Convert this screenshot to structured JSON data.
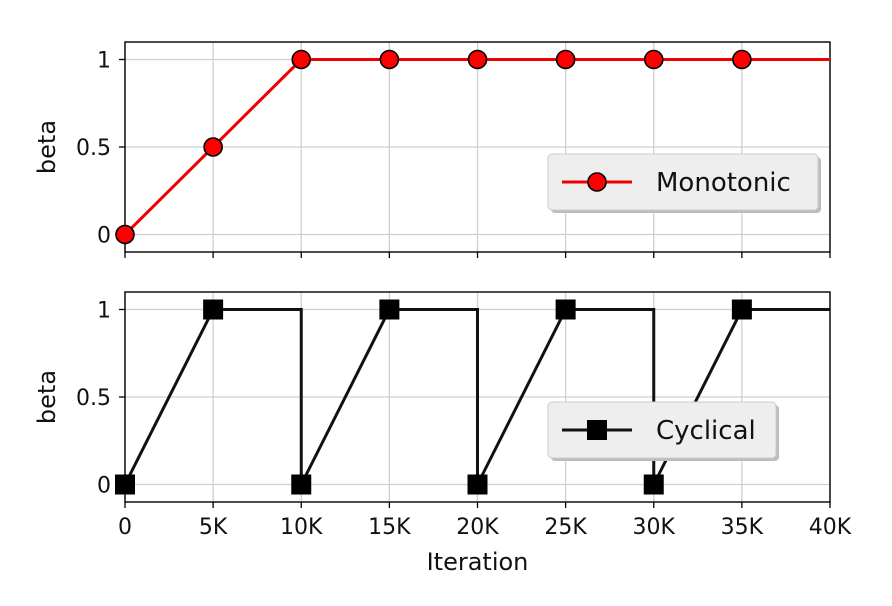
{
  "chart_data": [
    {
      "type": "line",
      "ylabel": "beta",
      "xlabel": "",
      "xlim": [
        0,
        40000
      ],
      "ylim": [
        -0.1,
        1.1
      ],
      "xticks": [
        0,
        5000,
        10000,
        15000,
        20000,
        25000,
        30000,
        35000,
        40000
      ],
      "xtick_labels": [],
      "yticks": [
        0,
        0.5,
        1
      ],
      "ytick_labels": [
        "0",
        "0.5",
        "1"
      ],
      "grid": true,
      "legend_position": "center-right",
      "series": [
        {
          "name": "Monotonic",
          "color": "#ee0000",
          "marker_color": "#ff0000",
          "marker": "circle",
          "line": [
            [
              0,
              0
            ],
            [
              10000,
              1
            ],
            [
              40000,
              1
            ]
          ],
          "markers": [
            [
              0,
              0
            ],
            [
              5000,
              0.5
            ],
            [
              10000,
              1
            ],
            [
              15000,
              1
            ],
            [
              20000,
              1
            ],
            [
              25000,
              1
            ],
            [
              30000,
              1
            ],
            [
              35000,
              1
            ]
          ]
        }
      ]
    },
    {
      "type": "line",
      "ylabel": "beta",
      "xlabel": "Iteration",
      "xlim": [
        0,
        40000
      ],
      "ylim": [
        -0.1,
        1.1
      ],
      "xticks": [
        0,
        5000,
        10000,
        15000,
        20000,
        25000,
        30000,
        35000,
        40000
      ],
      "xtick_labels": [
        "0",
        "5K",
        "10K",
        "15K",
        "20K",
        "25K",
        "30K",
        "35K",
        "40K"
      ],
      "yticks": [
        0,
        0.5,
        1
      ],
      "ytick_labels": [
        "0",
        "0.5",
        "1"
      ],
      "grid": true,
      "legend_position": "center-right",
      "series": [
        {
          "name": "Cyclical",
          "color": "#111111",
          "marker_color": "#000000",
          "marker": "square",
          "line": [
            [
              0,
              0
            ],
            [
              5000,
              1
            ],
            [
              10000,
              1
            ],
            [
              10000,
              0
            ],
            [
              15000,
              1
            ],
            [
              20000,
              1
            ],
            [
              20000,
              0
            ],
            [
              25000,
              1
            ],
            [
              30000,
              1
            ],
            [
              30000,
              0
            ],
            [
              35000,
              1
            ],
            [
              40000,
              1
            ]
          ],
          "markers": [
            [
              0,
              0
            ],
            [
              5000,
              1
            ],
            [
              10000,
              0
            ],
            [
              15000,
              1
            ],
            [
              20000,
              0
            ],
            [
              25000,
              1
            ],
            [
              30000,
              0
            ],
            [
              35000,
              1
            ]
          ]
        }
      ]
    }
  ]
}
